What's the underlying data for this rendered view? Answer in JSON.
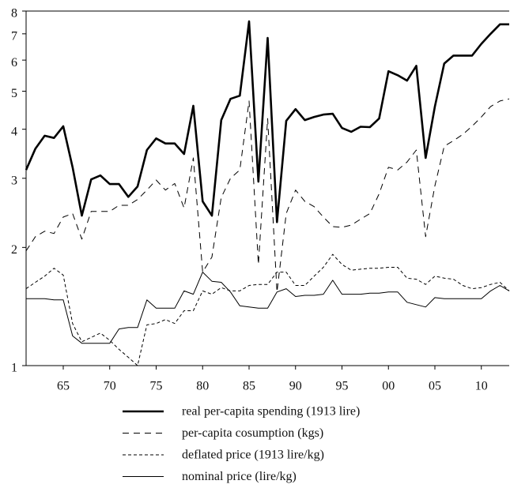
{
  "chart_data": {
    "type": "line",
    "log_y": true,
    "x": [
      1861,
      1862,
      1863,
      1864,
      1865,
      1866,
      1867,
      1868,
      1869,
      1870,
      1871,
      1872,
      1873,
      1874,
      1875,
      1876,
      1877,
      1878,
      1879,
      1880,
      1881,
      1882,
      1883,
      1884,
      1885,
      1886,
      1887,
      1888,
      1889,
      1890,
      1891,
      1892,
      1893,
      1894,
      1895,
      1896,
      1897,
      1898,
      1899,
      1900,
      1901,
      1902,
      1903,
      1904,
      1905,
      1906,
      1907,
      1908,
      1909,
      1910,
      1911,
      1912,
      1913
    ],
    "xlim": [
      1861,
      1913
    ],
    "xticks": [
      {
        "value": 1865,
        "label": "65"
      },
      {
        "value": 1870,
        "label": "70"
      },
      {
        "value": 1875,
        "label": "75"
      },
      {
        "value": 1880,
        "label": "80"
      },
      {
        "value": 1885,
        "label": "85"
      },
      {
        "value": 1890,
        "label": "90"
      },
      {
        "value": 1895,
        "label": "95"
      },
      {
        "value": 1900,
        "label": "00"
      },
      {
        "value": 1905,
        "label": "05"
      },
      {
        "value": 1910,
        "label": "10"
      }
    ],
    "ylim": [
      1,
      8
    ],
    "yticks": [
      1,
      2,
      3,
      4,
      5,
      6,
      7,
      8
    ],
    "series": [
      {
        "name": "real per-capita spending (1913 lire)",
        "color": "#000000",
        "width": 2.6,
        "dash": "none",
        "values": [
          3.15,
          3.57,
          3.85,
          3.8,
          4.07,
          3.2,
          2.41,
          2.98,
          3.05,
          2.9,
          2.9,
          2.69,
          2.86,
          3.54,
          3.79,
          3.68,
          3.68,
          3.46,
          4.59,
          2.62,
          2.41,
          4.22,
          4.78,
          4.87,
          7.53,
          2.94,
          6.83,
          2.32,
          4.2,
          4.5,
          4.22,
          4.3,
          4.36,
          4.38,
          4.03,
          3.94,
          4.06,
          4.05,
          4.26,
          5.62,
          5.49,
          5.32,
          5.8,
          3.38,
          4.57,
          5.88,
          6.16,
          6.16,
          6.16,
          6.6,
          7.0,
          7.4,
          7.4
        ]
      },
      {
        "name": "per-capita cosumption (kgs)",
        "color": "#000000",
        "width": 1,
        "dash": "8 6",
        "values": [
          1.96,
          2.13,
          2.2,
          2.17,
          2.39,
          2.44,
          2.1,
          2.47,
          2.47,
          2.47,
          2.56,
          2.56,
          2.65,
          2.8,
          2.97,
          2.8,
          2.91,
          2.52,
          3.38,
          1.73,
          1.89,
          2.68,
          3.0,
          3.15,
          4.72,
          1.81,
          4.26,
          1.54,
          2.44,
          2.8,
          2.62,
          2.54,
          2.39,
          2.26,
          2.25,
          2.28,
          2.36,
          2.44,
          2.74,
          3.2,
          3.15,
          3.3,
          3.54,
          2.13,
          2.87,
          3.62,
          3.74,
          3.88,
          4.07,
          4.3,
          4.57,
          4.72,
          4.78
        ]
      },
      {
        "name": "deflated price (1913 lire/kg)",
        "color": "#000000",
        "width": 1,
        "dash": "4 3",
        "values": [
          1.57,
          1.63,
          1.69,
          1.77,
          1.7,
          1.28,
          1.15,
          1.18,
          1.21,
          1.16,
          1.1,
          1.05,
          1.0,
          1.27,
          1.28,
          1.31,
          1.28,
          1.38,
          1.38,
          1.55,
          1.52,
          1.58,
          1.55,
          1.55,
          1.6,
          1.61,
          1.61,
          1.73,
          1.73,
          1.6,
          1.6,
          1.69,
          1.78,
          1.92,
          1.81,
          1.75,
          1.76,
          1.77,
          1.77,
          1.78,
          1.78,
          1.67,
          1.66,
          1.61,
          1.69,
          1.67,
          1.66,
          1.6,
          1.57,
          1.58,
          1.61,
          1.63,
          1.55
        ]
      },
      {
        "name": "nominal price (lire/kg)",
        "color": "#000000",
        "width": 1,
        "dash": "none",
        "values": [
          1.48,
          1.48,
          1.48,
          1.47,
          1.47,
          1.19,
          1.14,
          1.14,
          1.14,
          1.14,
          1.24,
          1.25,
          1.25,
          1.47,
          1.4,
          1.4,
          1.4,
          1.55,
          1.52,
          1.73,
          1.64,
          1.63,
          1.54,
          1.42,
          1.41,
          1.4,
          1.4,
          1.54,
          1.57,
          1.5,
          1.51,
          1.51,
          1.52,
          1.65,
          1.52,
          1.52,
          1.52,
          1.53,
          1.53,
          1.54,
          1.54,
          1.45,
          1.43,
          1.41,
          1.49,
          1.48,
          1.48,
          1.48,
          1.48,
          1.48,
          1.55,
          1.6,
          1.55
        ]
      }
    ]
  }
}
